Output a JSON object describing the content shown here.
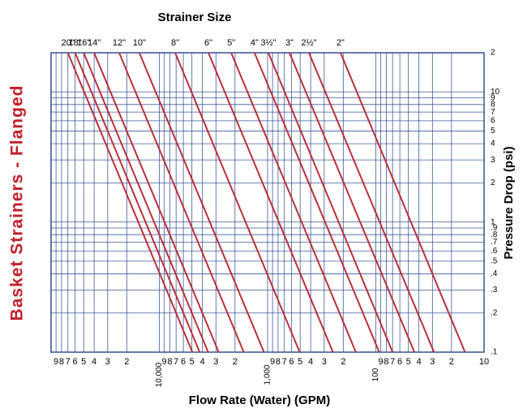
{
  "chart_data": {
    "type": "line",
    "title": "Basket Strainers - Flanged",
    "legend_title": "Strainer Size",
    "xlabel": "Flow Rate (Water) (GPM)",
    "ylabel": "Pressure Drop (psi)",
    "xscale": "log",
    "yscale": "log",
    "grid": true,
    "xlim": [
      100000,
      10
    ],
    "ylim": [
      0.1,
      20
    ],
    "xticks": [
      {
        "value": 90000,
        "label": "9"
      },
      {
        "value": 80000,
        "label": "8"
      },
      {
        "value": 70000,
        "label": "7"
      },
      {
        "value": 60000,
        "label": "6"
      },
      {
        "value": 50000,
        "label": "5"
      },
      {
        "value": 40000,
        "label": "4"
      },
      {
        "value": 30000,
        "label": "3"
      },
      {
        "value": 20000,
        "label": "2"
      },
      {
        "value": 10000,
        "label": "10,000"
      },
      {
        "value": 9000,
        "label": "9"
      },
      {
        "value": 8000,
        "label": "8"
      },
      {
        "value": 7000,
        "label": "7"
      },
      {
        "value": 6000,
        "label": "6"
      },
      {
        "value": 5000,
        "label": "5"
      },
      {
        "value": 4000,
        "label": "4"
      },
      {
        "value": 3000,
        "label": "3"
      },
      {
        "value": 2000,
        "label": "2"
      },
      {
        "value": 1000,
        "label": "1,000"
      },
      {
        "value": 900,
        "label": "9"
      },
      {
        "value": 800,
        "label": "8"
      },
      {
        "value": 700,
        "label": "7"
      },
      {
        "value": 600,
        "label": "6"
      },
      {
        "value": 500,
        "label": "5"
      },
      {
        "value": 400,
        "label": "4"
      },
      {
        "value": 300,
        "label": "3"
      },
      {
        "value": 200,
        "label": "2"
      },
      100,
      {
        "value": 90,
        "label": "9"
      },
      {
        "value": 80,
        "label": "8"
      },
      {
        "value": 70,
        "label": "7"
      },
      {
        "value": 60,
        "label": "6"
      },
      {
        "value": 50,
        "label": "5"
      },
      {
        "value": 40,
        "label": "4"
      },
      {
        "value": 30,
        "label": "3"
      },
      {
        "value": 20,
        "label": "2"
      },
      10
    ],
    "yticks": [
      {
        "value": 20,
        "label": "2"
      },
      10,
      9,
      8,
      7,
      6,
      5,
      4,
      3,
      2,
      1,
      {
        "value": 0.9,
        "label": ".9"
      },
      {
        "value": 0.8,
        "label": ".8"
      },
      {
        "value": 0.7,
        "label": ".7"
      },
      {
        "value": 0.6,
        "label": ".6"
      },
      {
        "value": 0.5,
        "label": ".5"
      },
      {
        "value": 0.4,
        "label": ".4"
      },
      {
        "value": 0.3,
        "label": ".3"
      },
      {
        "value": 0.2,
        "label": ".2"
      },
      {
        "value": 0.1,
        "label": ".1"
      }
    ],
    "series": [
      {
        "name": "20\"",
        "color": "#b8303a",
        "x": [
          70000,
          4950
        ],
        "values": [
          20,
          0.1
        ]
      },
      {
        "name": "18\"",
        "color": "#b8303a",
        "x": [
          60000,
          4240
        ],
        "values": [
          20,
          0.1
        ]
      },
      {
        "name": "16\"",
        "color": "#b8303a",
        "x": [
          50000,
          3540
        ],
        "values": [
          20,
          0.1
        ]
      },
      {
        "name": "14\"",
        "color": "#b8303a",
        "x": [
          40000,
          2830
        ],
        "values": [
          20,
          0.1
        ]
      },
      {
        "name": "12\"",
        "color": "#b8303a",
        "x": [
          23500,
          1660
        ],
        "values": [
          20,
          0.1
        ]
      },
      {
        "name": "10\"",
        "color": "#b8303a",
        "x": [
          15300,
          1080
        ],
        "values": [
          20,
          0.1
        ]
      },
      {
        "name": "8\"",
        "color": "#b8303a",
        "x": [
          7140,
          505
        ],
        "values": [
          20,
          0.1
        ]
      },
      {
        "name": "6\"",
        "color": "#b8303a",
        "x": [
          3520,
          249
        ],
        "values": [
          20,
          0.1
        ]
      },
      {
        "name": "5\"",
        "color": "#b8303a",
        "x": [
          2170,
          153
        ],
        "values": [
          20,
          0.1
        ]
      },
      {
        "name": "4\"",
        "color": "#b8303a",
        "x": [
          1320,
          93
        ],
        "values": [
          20,
          0.1
        ]
      },
      {
        "name": "3½\"",
        "color": "#b8303a",
        "x": [
          984,
          70
        ],
        "values": [
          20,
          0.1
        ]
      },
      {
        "name": "3\"",
        "color": "#b8303a",
        "x": [
          628,
          44
        ],
        "values": [
          20,
          0.1
        ]
      },
      {
        "name": "2½\"",
        "color": "#b8303a",
        "x": [
          415,
          29
        ],
        "values": [
          20,
          0.1
        ]
      },
      {
        "name": "2\"",
        "color": "#b8303a",
        "x": [
          212,
          15
        ],
        "values": [
          20,
          0.1
        ]
      }
    ]
  }
}
